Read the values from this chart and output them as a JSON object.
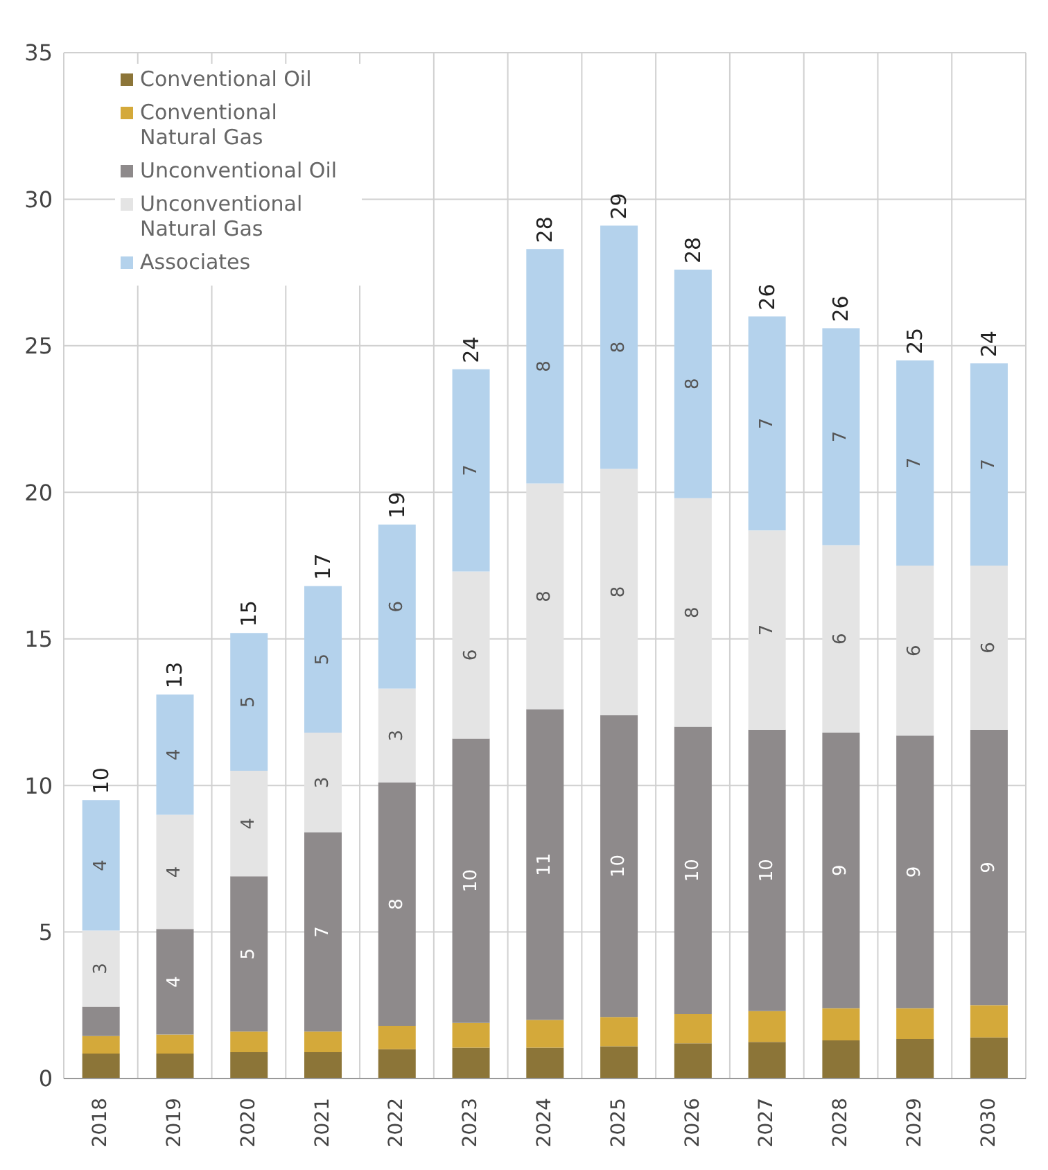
{
  "chart_data": {
    "type": "bar",
    "stacked": true,
    "categories": [
      "2018",
      "2019",
      "2020",
      "2021",
      "2022",
      "2023",
      "2024",
      "2025",
      "2026",
      "2027",
      "2028",
      "2029",
      "2030"
    ],
    "series": [
      {
        "name": "Conventional Oil",
        "color": "#8c7538",
        "values": [
          0.85,
          0.85,
          0.9,
          0.9,
          1.0,
          1.05,
          1.05,
          1.1,
          1.2,
          1.25,
          1.3,
          1.35,
          1.4
        ]
      },
      {
        "name": "Conventional Natural Gas",
        "color": "#d4a93a",
        "values": [
          0.6,
          0.65,
          0.7,
          0.7,
          0.8,
          0.85,
          0.95,
          1.0,
          1.0,
          1.05,
          1.1,
          1.05,
          1.1
        ]
      },
      {
        "name": "Unconventional Oil",
        "color": "#8e8a8b",
        "values": [
          1.0,
          3.6,
          5.3,
          6.8,
          8.3,
          9.7,
          10.6,
          10.3,
          9.8,
          9.6,
          9.4,
          9.3,
          9.4
        ],
        "value_labels": [
          null,
          "4",
          "5",
          "7",
          "8",
          "10",
          "11",
          "10",
          "10",
          "10",
          "9",
          "9",
          "9"
        ]
      },
      {
        "name": "Unconventional Natural Gas",
        "color": "#e4e4e4",
        "values": [
          2.6,
          3.9,
          3.6,
          3.4,
          3.2,
          5.7,
          7.7,
          8.4,
          7.8,
          6.8,
          6.4,
          5.8,
          5.6
        ],
        "value_labels": [
          "3",
          "4",
          "4",
          "3",
          "3",
          "6",
          "8",
          "8",
          "8",
          "7",
          "6",
          "6",
          "6"
        ]
      },
      {
        "name": "Associates",
        "color": "#b4d2ec",
        "values": [
          4.45,
          4.1,
          4.7,
          5.0,
          5.6,
          6.9,
          8.0,
          8.3,
          7.8,
          7.3,
          7.4,
          7.0,
          6.9
        ],
        "value_labels": [
          "4",
          "4",
          "5",
          "5",
          "6",
          "7",
          "8",
          "8",
          "8",
          "7",
          "7",
          "7",
          "7"
        ]
      }
    ],
    "totals": [
      "10",
      "13",
      "15",
      "17",
      "19",
      "24",
      "28",
      "29",
      "28",
      "26",
      "26",
      "25",
      "24"
    ],
    "ylim": [
      0,
      35
    ],
    "yticks": [
      0,
      5,
      10,
      15,
      20,
      25,
      30,
      35
    ],
    "grid": true,
    "legend": "top left"
  }
}
